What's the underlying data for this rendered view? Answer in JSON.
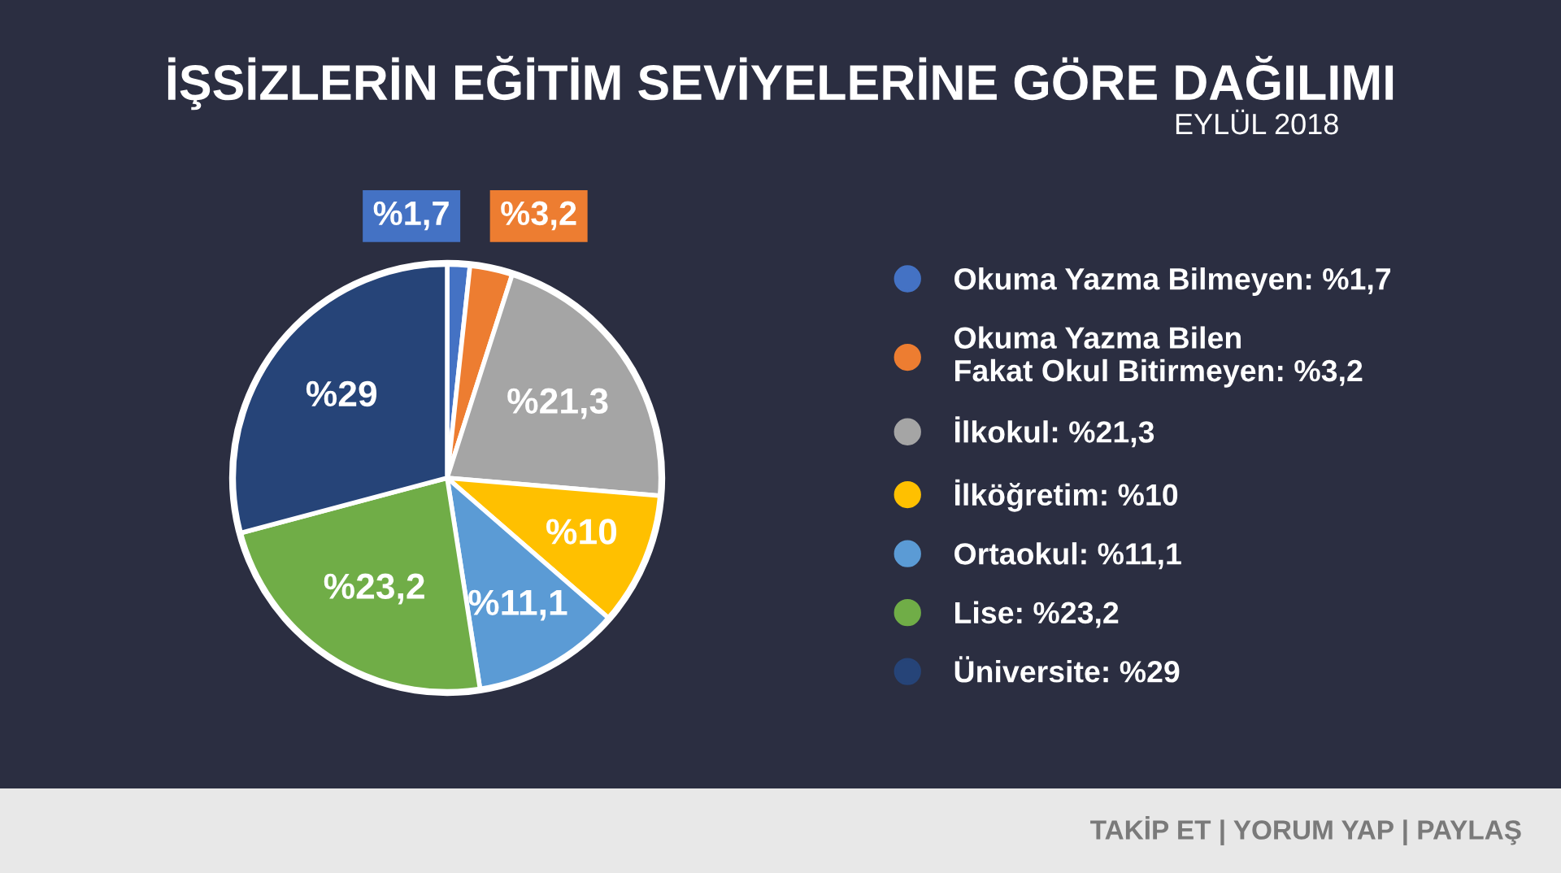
{
  "chart_data": {
    "type": "pie",
    "title": "İŞSİZLERİN EĞİTİM SEVİYELERİNE GÖRE DAĞILIMI",
    "subtitle": "EYLÜL 2018",
    "categories": [
      "Okuma Yazma Bilmeyen: %1,7",
      "Okuma Yazma Bilen\nFakat Okul Bitirmeyen: %3,2",
      "İlkokul: %21,3",
      "İlköğretim: %10",
      "Ortaokul: %11,1",
      "Lise: %23,2",
      "Üniversite: %29"
    ],
    "values": [
      1.7,
      3.2,
      21.3,
      10,
      11.1,
      23.2,
      29
    ],
    "value_labels": [
      "%1,7",
      "%3,2",
      "%21,3",
      "%10",
      "%11,1",
      "%23,2",
      "%29"
    ],
    "colors": [
      "#4472c4",
      "#ed7d31",
      "#a5a5a5",
      "#ffc000",
      "#5b9bd5",
      "#70ad47",
      "#264478"
    ],
    "legend": "right",
    "annotations": [
      "TAKİP ET | YORUM YAP | PAYLAŞ"
    ]
  }
}
